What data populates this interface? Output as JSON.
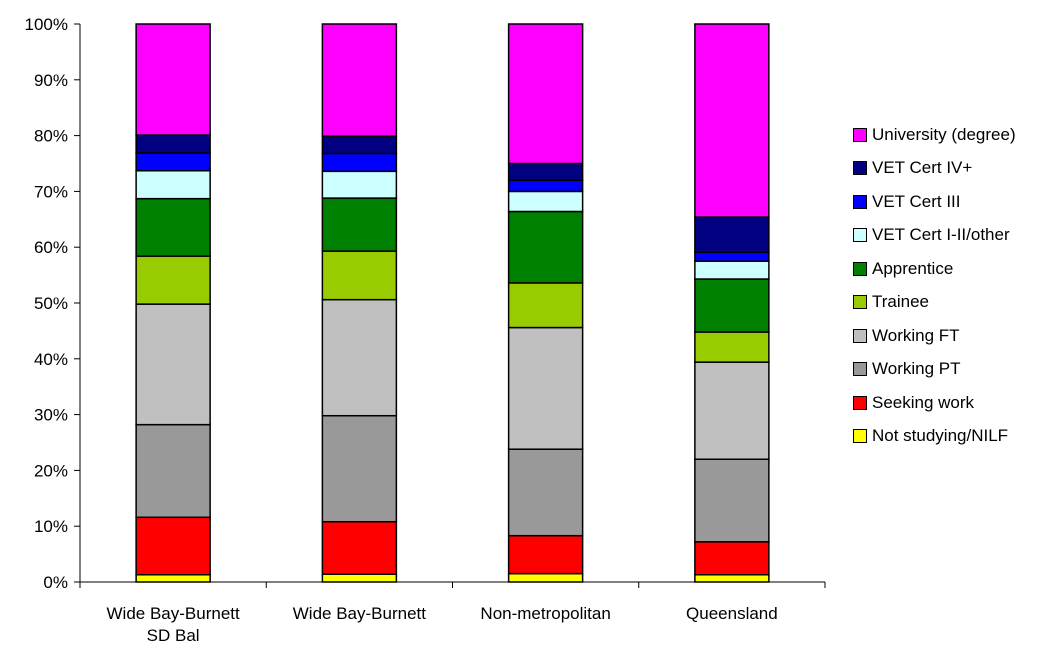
{
  "chart_data": {
    "type": "bar",
    "stacked": true,
    "percent": true,
    "categories": [
      "Wide Bay-Burnett SD Bal",
      "Wide Bay-Burnett",
      "Non-metropolitan",
      "Queensland"
    ],
    "category_lines": [
      [
        "Wide Bay-Burnett",
        "SD Bal"
      ],
      [
        "Wide Bay-Burnett"
      ],
      [
        "Non-metropolitan"
      ],
      [
        "Queensland"
      ]
    ],
    "ylim": [
      0,
      100
    ],
    "yticks": [
      "0%",
      "10%",
      "20%",
      "30%",
      "40%",
      "50%",
      "60%",
      "70%",
      "80%",
      "90%",
      "100%"
    ],
    "legend_position": "right",
    "series": [
      {
        "name": "Not studying/NILF",
        "color": "#FFFF00",
        "values": [
          1.3,
          1.4,
          1.5,
          1.3
        ]
      },
      {
        "name": "Seeking work",
        "color": "#FF0000",
        "values": [
          10.3,
          9.4,
          6.8,
          5.9
        ]
      },
      {
        "name": "Working PT",
        "color": "#999999",
        "values": [
          16.6,
          19.0,
          15.5,
          14.8
        ]
      },
      {
        "name": "Working FT",
        "color": "#C0C0C0",
        "values": [
          21.6,
          20.8,
          21.8,
          17.4
        ]
      },
      {
        "name": "Trainee",
        "color": "#99CC00",
        "values": [
          8.6,
          8.7,
          8.0,
          5.4
        ]
      },
      {
        "name": "Apprentice",
        "color": "#008000",
        "values": [
          10.3,
          9.5,
          12.8,
          9.5
        ]
      },
      {
        "name": "VET Cert I-II/other",
        "color": "#CCFFFF",
        "values": [
          5.0,
          4.8,
          3.6,
          3.2
        ]
      },
      {
        "name": "VET Cert III",
        "color": "#0000FF",
        "values": [
          3.2,
          3.2,
          2.0,
          1.6
        ]
      },
      {
        "name": "VET Cert IV+",
        "color": "#000080",
        "values": [
          3.2,
          3.1,
          3.0,
          6.3
        ]
      },
      {
        "name": "University (degree)",
        "color": "#FF00FF",
        "values": [
          19.9,
          20.1,
          25.0,
          34.6
        ]
      }
    ]
  }
}
